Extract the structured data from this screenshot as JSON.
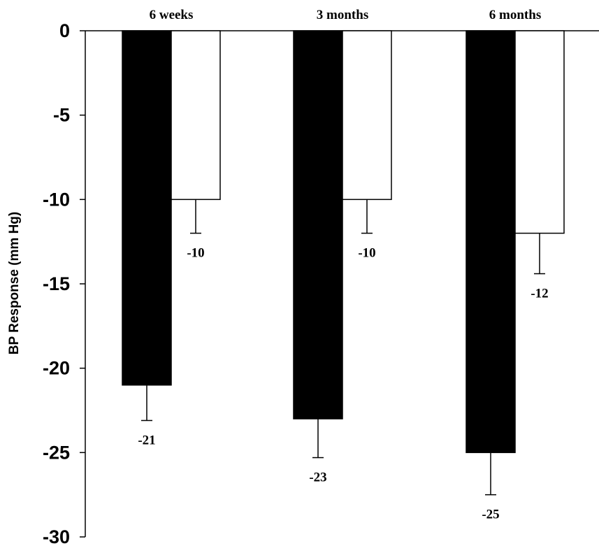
{
  "chart_data": {
    "type": "bar",
    "title": "",
    "xlabel": "",
    "ylabel": "BP Response (mm Hg)",
    "ylim": [
      -30,
      0
    ],
    "yticks": [
      0,
      -5,
      -10,
      -15,
      -20,
      -25,
      -30
    ],
    "categories": [
      "6 weeks",
      "3 months",
      "6 months"
    ],
    "grid": false,
    "series": [
      {
        "color": "#000000",
        "values": [
          -21,
          -23,
          -25
        ],
        "errors": [
          2.1,
          2.3,
          2.5
        ],
        "labels": [
          "-21",
          "-23",
          "-25"
        ]
      },
      {
        "color": "#ffffff",
        "values": [
          -10,
          -10,
          -12
        ],
        "errors": [
          2.0,
          2.0,
          2.4
        ],
        "labels": [
          "-10",
          "-10",
          "-12"
        ]
      }
    ]
  }
}
